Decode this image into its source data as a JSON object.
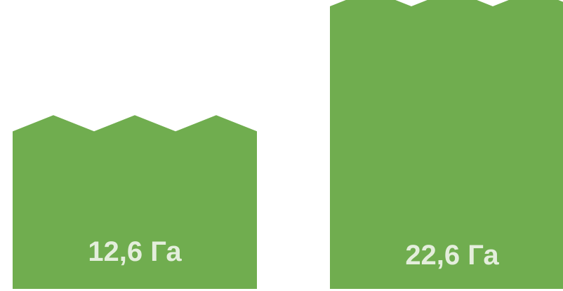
{
  "chart_data": {
    "type": "bar",
    "categories": [
      "",
      ""
    ],
    "values": [
      12.6,
      22.6
    ],
    "labels": [
      "12,6 Га",
      "22,6 Га"
    ],
    "unit": "Га",
    "title": "",
    "xlabel": "",
    "ylabel": "",
    "ylim": [
      0,
      22.6
    ],
    "grid": false,
    "legend": "none",
    "bar_top_style": "zigzag"
  },
  "colors": {
    "bar": "#70AD4F",
    "label": "#E4EEDC",
    "background": "#FFFFFF"
  }
}
